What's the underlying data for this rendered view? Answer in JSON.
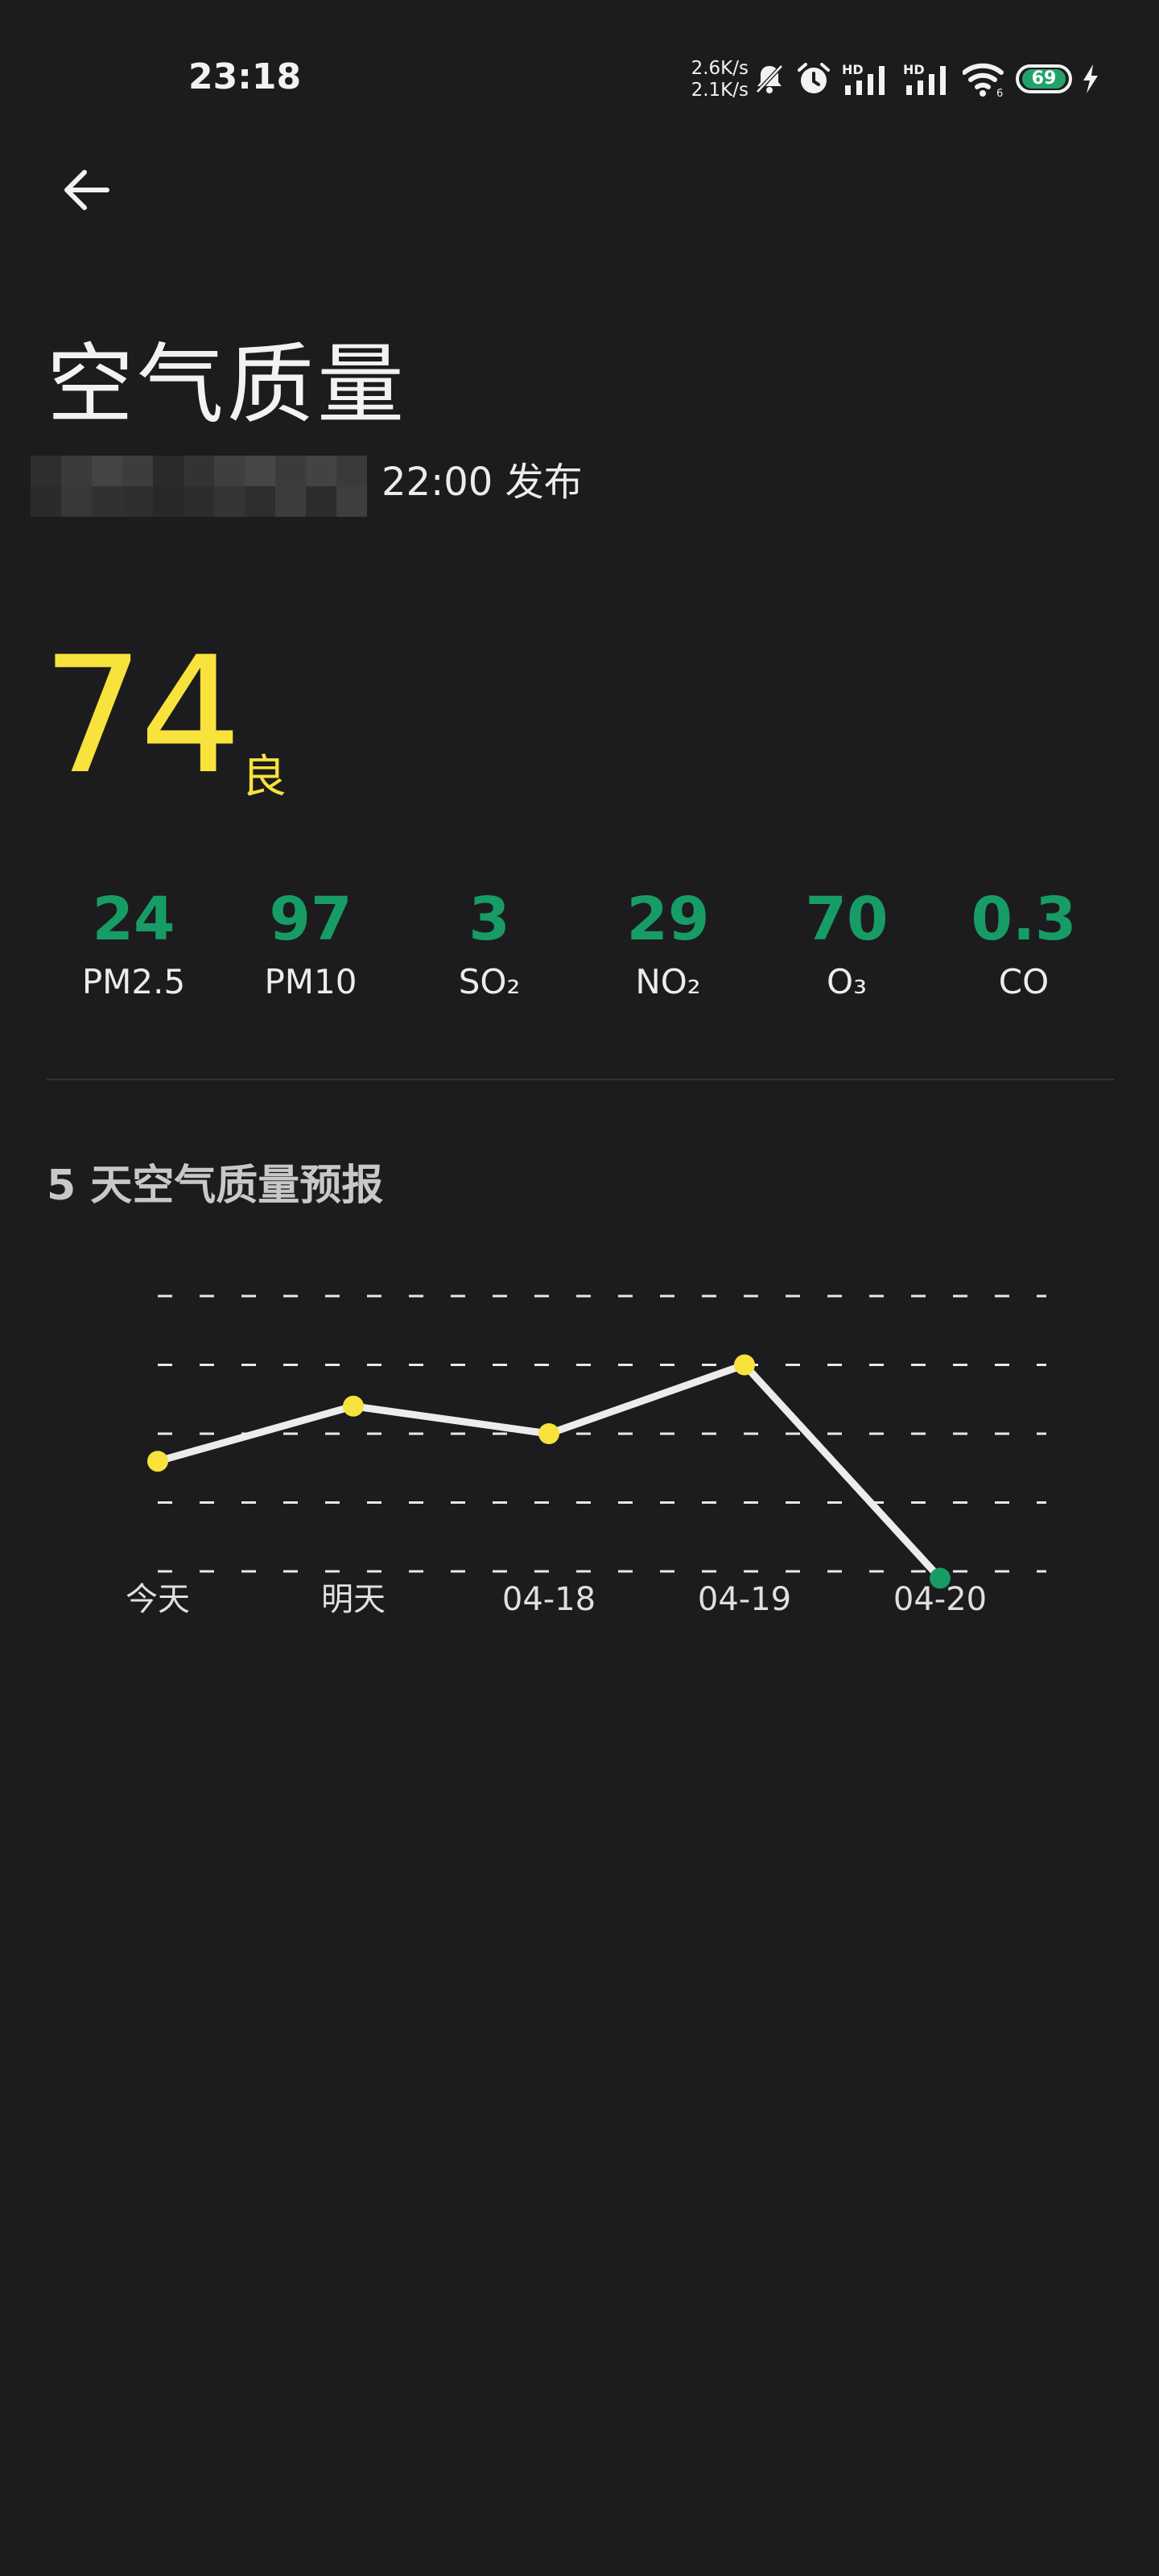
{
  "status_bar": {
    "time": "23:18",
    "net_up": "2.6K/s",
    "net_down": "2.1K/s",
    "battery": "69",
    "icons": [
      "bell-muted-icon",
      "alarm-icon",
      "hd-signal-icon",
      "hd-signal-icon",
      "wifi-icon",
      "battery-icon",
      "charging-icon"
    ]
  },
  "header": {
    "title": "空气质量",
    "publish_time": "22:00 发布"
  },
  "aqi": {
    "value": "74",
    "level": "良",
    "color": "#f8e23c"
  },
  "pollutants": [
    {
      "value": "24",
      "name": "PM2.5"
    },
    {
      "value": "97",
      "name": "PM10"
    },
    {
      "value": "3",
      "name": "SO₂"
    },
    {
      "value": "29",
      "name": "NO₂"
    },
    {
      "value": "70",
      "name": "O₃"
    },
    {
      "value": "0.3",
      "name": "CO"
    }
  ],
  "colors": {
    "good": "#179c66",
    "moderate": "#f8e23c",
    "background": "#1c1c1e"
  },
  "forecast": {
    "title": "5 天空气质量预报"
  },
  "chart_data": {
    "type": "line",
    "categories": [
      "今天",
      "明天",
      "04-18",
      "04-19",
      "04-20"
    ],
    "values": [
      66,
      74,
      70,
      80,
      49
    ],
    "ylim": [
      50,
      90
    ],
    "grid": true,
    "point_colors": [
      "#f8e23c",
      "#f8e23c",
      "#f8e23c",
      "#f8e23c",
      "#179c66"
    ]
  }
}
